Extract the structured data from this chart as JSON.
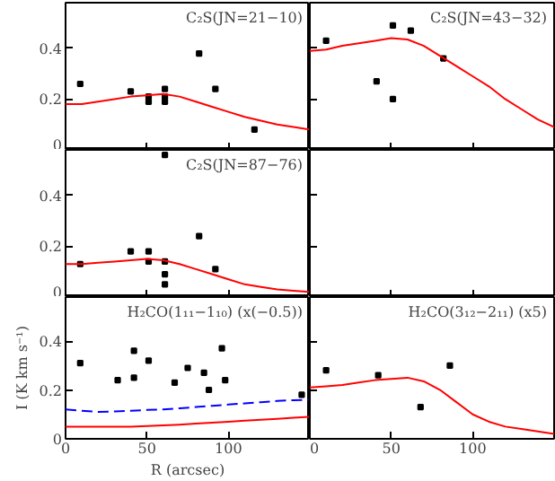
{
  "chart_data": [
    {
      "type": "scatter",
      "title": "C₂S(JN=21−10)",
      "xlim": [
        0,
        150
      ],
      "ylim": [
        0,
        0.58
      ],
      "xticks": [
        0,
        50,
        100
      ],
      "yticks": [
        0,
        0.2,
        0.4
      ],
      "tick_labels": "y",
      "grid": false,
      "series": [
        {
          "marker": "square",
          "color": "#000000",
          "x": [
            9,
            40,
            51,
            51,
            61,
            61,
            61,
            82,
            92,
            116
          ],
          "values": [
            0.26,
            0.23,
            0.21,
            0.19,
            0.24,
            0.21,
            0.19,
            0.38,
            0.24,
            0.08
          ]
        },
        {
          "type": "line",
          "line_style": "solid",
          "color": "#ff0000",
          "x": [
            0,
            10,
            20,
            30,
            40,
            50,
            60,
            70,
            80,
            90,
            100,
            110,
            120,
            130,
            140,
            150
          ],
          "values": [
            0.18,
            0.18,
            0.19,
            0.2,
            0.21,
            0.215,
            0.22,
            0.21,
            0.19,
            0.17,
            0.15,
            0.13,
            0.115,
            0.1,
            0.09,
            0.08
          ]
        }
      ]
    },
    {
      "type": "scatter",
      "title": "C₂S(JN=43−32)",
      "xlim": [
        0,
        150
      ],
      "ylim": [
        0,
        0.58
      ],
      "xticks": [
        0,
        50,
        100
      ],
      "yticks": [
        0,
        0.2,
        0.4
      ],
      "tick_labels": false,
      "grid": false,
      "series": [
        {
          "marker": "square",
          "color": "#000000",
          "x": [
            10,
            41,
            51,
            51,
            62,
            82
          ],
          "values": [
            0.43,
            0.27,
            0.49,
            0.2,
            0.47,
            0.36
          ]
        },
        {
          "type": "line",
          "line_style": "solid",
          "color": "#ff0000",
          "x": [
            0,
            10,
            20,
            30,
            40,
            50,
            60,
            70,
            80,
            90,
            100,
            110,
            120,
            130,
            140,
            150
          ],
          "values": [
            0.39,
            0.395,
            0.41,
            0.42,
            0.43,
            0.44,
            0.435,
            0.41,
            0.37,
            0.33,
            0.29,
            0.25,
            0.2,
            0.16,
            0.12,
            0.09
          ]
        }
      ]
    },
    {
      "type": "scatter",
      "title": "C₂S(JN=87−76)",
      "xlim": [
        0,
        150
      ],
      "ylim": [
        0,
        0.58
      ],
      "xticks": [
        0,
        50,
        100
      ],
      "yticks": [
        0,
        0.2,
        0.4
      ],
      "tick_labels": "y",
      "grid": false,
      "series": [
        {
          "marker": "square",
          "color": "#000000",
          "x": [
            9,
            40,
            51,
            51,
            61,
            61,
            61,
            61,
            82,
            92
          ],
          "values": [
            0.13,
            0.18,
            0.18,
            0.14,
            0.14,
            0.09,
            0.05,
            0.56,
            0.24,
            0.11
          ]
        },
        {
          "type": "line",
          "line_style": "solid",
          "color": "#ff0000",
          "x": [
            0,
            10,
            20,
            30,
            40,
            50,
            60,
            70,
            80,
            90,
            100,
            110,
            120,
            130,
            140,
            150
          ],
          "values": [
            0.13,
            0.13,
            0.135,
            0.14,
            0.145,
            0.15,
            0.145,
            0.13,
            0.11,
            0.09,
            0.07,
            0.05,
            0.04,
            0.03,
            0.025,
            0.02
          ]
        }
      ]
    },
    {
      "type": "scatter",
      "xlim": [
        0,
        150
      ],
      "ylim": [
        0,
        0.58
      ],
      "xticks": [
        0,
        50,
        100
      ],
      "yticks": [
        0,
        0.2,
        0.4
      ],
      "tick_labels": false,
      "grid": false
    },
    {
      "type": "scatter",
      "title": "H₂CO(1₁₁−1₁₀) (x(−0.5))",
      "xlabel": "R (arcsec)",
      "ylabel": "I (K km s⁻¹)",
      "xlim": [
        0,
        150
      ],
      "ylim": [
        0,
        0.58
      ],
      "xticks": [
        0,
        50,
        100
      ],
      "yticks": [
        0,
        0.2,
        0.4
      ],
      "grid": false,
      "series": [
        {
          "marker": "square",
          "color": "#000000",
          "x": [
            9,
            32,
            42,
            42,
            51,
            67,
            75,
            85,
            88,
            96,
            98,
            145
          ],
          "values": [
            0.31,
            0.24,
            0.36,
            0.25,
            0.32,
            0.23,
            0.29,
            0.27,
            0.2,
            0.37,
            0.24,
            0.18
          ]
        },
        {
          "type": "line",
          "line_style": "dashed",
          "color": "#0000ff",
          "x": [
            0,
            10,
            20,
            30,
            40,
            50,
            60,
            70,
            80,
            90,
            100,
            110,
            120,
            130,
            140,
            150
          ],
          "values": [
            0.12,
            0.115,
            0.11,
            0.112,
            0.115,
            0.118,
            0.12,
            0.125,
            0.13,
            0.135,
            0.14,
            0.145,
            0.15,
            0.155,
            0.158,
            0.16
          ]
        },
        {
          "type": "line",
          "line_style": "solid",
          "color": "#ff0000",
          "x": [
            0,
            10,
            20,
            30,
            40,
            50,
            60,
            70,
            80,
            90,
            100,
            110,
            120,
            130,
            140,
            150
          ],
          "values": [
            0.05,
            0.05,
            0.05,
            0.05,
            0.05,
            0.052,
            0.055,
            0.058,
            0.062,
            0.066,
            0.07,
            0.074,
            0.078,
            0.082,
            0.086,
            0.09
          ]
        }
      ]
    },
    {
      "type": "scatter",
      "title": "H₂CO(3₁₂−2₁₁) (x5)",
      "xlim": [
        0,
        150
      ],
      "ylim": [
        0,
        0.58
      ],
      "xticks": [
        0,
        50,
        100
      ],
      "yticks": [
        0,
        0.2,
        0.4
      ],
      "tick_labels": "x",
      "grid": false,
      "series": [
        {
          "marker": "square",
          "color": "#000000",
          "x": [
            10,
            42,
            68,
            86
          ],
          "values": [
            0.28,
            0.26,
            0.13,
            0.3
          ]
        },
        {
          "type": "line",
          "line_style": "solid",
          "color": "#ff0000",
          "x": [
            0,
            10,
            20,
            30,
            40,
            50,
            60,
            70,
            80,
            90,
            100,
            110,
            120,
            130,
            140,
            150
          ],
          "values": [
            0.21,
            0.215,
            0.22,
            0.23,
            0.24,
            0.245,
            0.25,
            0.235,
            0.2,
            0.15,
            0.1,
            0.07,
            0.05,
            0.04,
            0.03,
            0.02
          ]
        }
      ]
    }
  ]
}
